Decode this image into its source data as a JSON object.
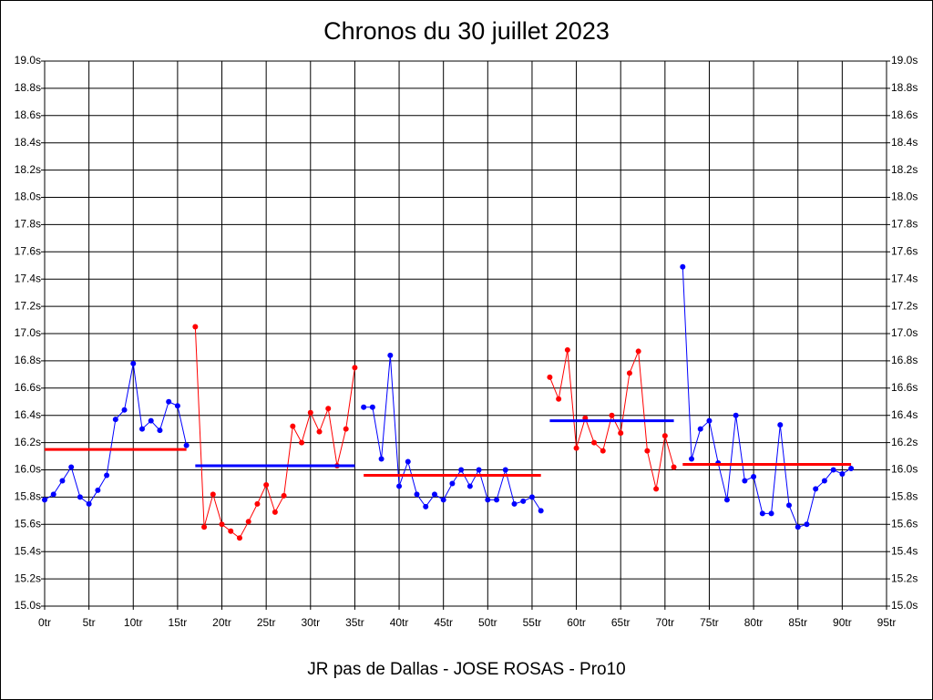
{
  "chart_data": {
    "type": "line",
    "title": "Chronos du 30 juillet 2023",
    "x_label": "JR pas de Dallas - JOSE ROSAS - Pro10",
    "xlim": [
      0,
      95
    ],
    "ylim": [
      15.0,
      19.0
    ],
    "grid": true,
    "right_axis": true,
    "xticks": [
      {
        "value": 0,
        "label": "0tr"
      },
      {
        "value": 5,
        "label": "5tr"
      },
      {
        "value": 10,
        "label": "10tr"
      },
      {
        "value": 15,
        "label": "15tr"
      },
      {
        "value": 20,
        "label": "20tr"
      },
      {
        "value": 25,
        "label": "25tr"
      },
      {
        "value": 30,
        "label": "30tr"
      },
      {
        "value": 35,
        "label": "35tr"
      },
      {
        "value": 40,
        "label": "40tr"
      },
      {
        "value": 45,
        "label": "45tr"
      },
      {
        "value": 50,
        "label": "50tr"
      },
      {
        "value": 55,
        "label": "55tr"
      },
      {
        "value": 60,
        "label": "60tr"
      },
      {
        "value": 65,
        "label": "65tr"
      },
      {
        "value": 70,
        "label": "70tr"
      },
      {
        "value": 75,
        "label": "75tr"
      },
      {
        "value": 80,
        "label": "80tr"
      },
      {
        "value": 85,
        "label": "85tr"
      },
      {
        "value": 90,
        "label": "90tr"
      },
      {
        "value": 95,
        "label": "95tr"
      }
    ],
    "yticks": [
      {
        "value": 15.0,
        "label": "15.0s"
      },
      {
        "value": 15.2,
        "label": "15.2s"
      },
      {
        "value": 15.4,
        "label": "15.4s"
      },
      {
        "value": 15.6,
        "label": "15.6s"
      },
      {
        "value": 15.8,
        "label": "15.8s"
      },
      {
        "value": 16.0,
        "label": "16.0s"
      },
      {
        "value": 16.2,
        "label": "16.2s"
      },
      {
        "value": 16.4,
        "label": "16.4s"
      },
      {
        "value": 16.6,
        "label": "16.6s"
      },
      {
        "value": 16.8,
        "label": "16.8s"
      },
      {
        "value": 17.0,
        "label": "17.0s"
      },
      {
        "value": 17.2,
        "label": "17.2s"
      },
      {
        "value": 17.4,
        "label": "17.4s"
      },
      {
        "value": 17.6,
        "label": "17.6s"
      },
      {
        "value": 17.8,
        "label": "17.8s"
      },
      {
        "value": 18.0,
        "label": "18.0s"
      },
      {
        "value": 18.2,
        "label": "18.2s"
      },
      {
        "value": 18.4,
        "label": "18.4s"
      },
      {
        "value": 18.6,
        "label": "18.6s"
      },
      {
        "value": 18.8,
        "label": "18.8s"
      },
      {
        "value": 19.0,
        "label": "19.0s"
      }
    ],
    "series": [
      {
        "color": "#0000ff",
        "x": [
          0,
          1,
          2,
          3,
          4,
          5,
          6,
          7,
          8,
          9,
          10,
          11,
          12,
          13,
          14,
          15,
          16
        ],
        "values": [
          15.78,
          15.82,
          15.92,
          16.02,
          15.8,
          15.75,
          15.85,
          15.96,
          16.37,
          16.44,
          16.78,
          16.3,
          16.36,
          16.29,
          16.5,
          16.47,
          16.18
        ]
      },
      {
        "color": "#ff0000",
        "x": [
          17,
          18,
          19,
          20,
          21,
          22,
          23,
          24,
          25,
          26,
          27,
          28,
          29,
          30,
          31,
          32,
          33,
          34,
          35
        ],
        "values": [
          17.05,
          15.58,
          15.82,
          15.6,
          15.55,
          15.5,
          15.62,
          15.75,
          15.89,
          15.69,
          15.81,
          16.32,
          16.2,
          16.42,
          16.28,
          16.45,
          16.03,
          16.3,
          16.75
        ]
      },
      {
        "color": "#0000ff",
        "x": [
          36,
          37,
          38,
          39,
          40,
          41,
          42,
          43,
          44,
          45,
          46,
          47,
          48,
          49,
          50,
          51,
          52,
          53,
          54,
          55,
          56
        ],
        "values": [
          16.46,
          16.46,
          16.08,
          16.84,
          15.88,
          16.06,
          15.82,
          15.73,
          15.82,
          15.78,
          15.9,
          16.0,
          15.88,
          16.0,
          15.78,
          15.78,
          16.0,
          15.75,
          15.77,
          15.8,
          15.7
        ]
      },
      {
        "color": "#ff0000",
        "x": [
          57,
          58,
          59,
          60,
          61,
          62,
          63,
          64,
          65,
          66,
          67,
          68,
          69,
          70,
          71
        ],
        "values": [
          16.68,
          16.52,
          16.88,
          16.16,
          16.38,
          16.2,
          16.14,
          16.4,
          16.27,
          16.71,
          16.87,
          16.14,
          15.86,
          16.25,
          16.02
        ]
      },
      {
        "color": "#0000ff",
        "x": [
          72,
          73,
          74,
          75,
          76,
          77,
          78,
          79,
          80,
          81,
          82,
          83,
          84,
          85,
          86,
          87,
          88,
          89,
          90,
          91
        ],
        "values": [
          17.49,
          16.08,
          16.3,
          16.36,
          16.05,
          15.78,
          16.4,
          15.92,
          15.95,
          15.68,
          15.68,
          16.33,
          15.74,
          15.58,
          15.6,
          15.86,
          15.92,
          16.0,
          15.97,
          16.01
        ]
      }
    ],
    "averages": [
      {
        "color": "#ff0000",
        "x": [
          0,
          16
        ],
        "value": 16.15
      },
      {
        "color": "#0000ff",
        "x": [
          17,
          35
        ],
        "value": 16.03
      },
      {
        "color": "#ff0000",
        "x": [
          36,
          56
        ],
        "value": 15.96
      },
      {
        "color": "#0000ff",
        "x": [
          57,
          71
        ],
        "value": 16.36
      },
      {
        "color": "#ff0000",
        "x": [
          72,
          91
        ],
        "value": 16.04
      }
    ]
  }
}
